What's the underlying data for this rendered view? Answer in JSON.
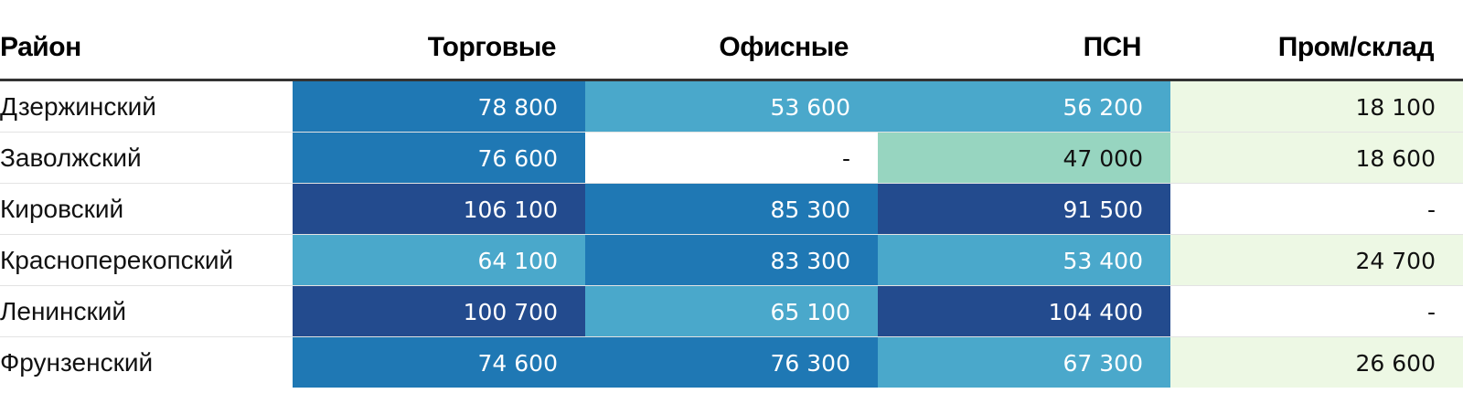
{
  "chart_data": {
    "type": "table",
    "columns": [
      "Район",
      "Торговые",
      "Офисные",
      "ПСН",
      "Пром/склад"
    ],
    "rows": [
      {
        "name": "Дзержинский",
        "display": [
          "78 800",
          "53 600",
          "56 200",
          "18 100"
        ],
        "values": [
          78800,
          53600,
          56200,
          18100
        ]
      },
      {
        "name": "Заволжский",
        "display": [
          "76 600",
          "-",
          "47 000",
          "18 600"
        ],
        "values": [
          76600,
          null,
          47000,
          18600
        ]
      },
      {
        "name": "Кировский",
        "display": [
          "106 100",
          "85 300",
          "91 500",
          "-"
        ],
        "values": [
          106100,
          85300,
          91500,
          null
        ]
      },
      {
        "name": "Красноперекопский",
        "display": [
          "64 100",
          "83 300",
          "53 400",
          "24 700"
        ],
        "values": [
          64100,
          83300,
          53400,
          24700
        ]
      },
      {
        "name": "Ленинский",
        "display": [
          "100 700",
          "65 100",
          "104 400",
          "-"
        ],
        "values": [
          100700,
          65100,
          104400,
          null
        ]
      },
      {
        "name": "Фрунзенский",
        "display": [
          "74 600",
          "76 300",
          "67 300",
          "26 600"
        ],
        "values": [
          74600,
          76300,
          67300,
          26600
        ]
      }
    ],
    "color_scale": [
      {
        "min": 0,
        "color": "#edf8e4",
        "text": "#111111"
      },
      {
        "min": 40000,
        "color": "#97d5c0",
        "text": "#111111"
      },
      {
        "min": 50000,
        "color": "#4aa8cb",
        "text": "#ffffff"
      },
      {
        "min": 70000,
        "color": "#1f78b4",
        "text": "#ffffff"
      },
      {
        "min": 90000,
        "color": "#234b8e",
        "text": "#ffffff"
      }
    ],
    "empty_color": "#ffffff"
  }
}
